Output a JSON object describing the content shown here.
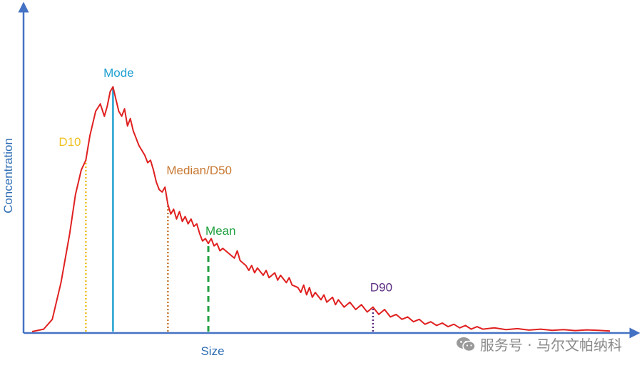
{
  "chart_data": {
    "type": "line",
    "title": "",
    "xlabel": "Size",
    "ylabel": "Concentration",
    "xlim": [
      0,
      100
    ],
    "ylim": [
      0,
      100
    ],
    "grid": false,
    "series": [
      {
        "color": "#e02020",
        "points": [
          [
            0,
            0
          ],
          [
            2,
            1
          ],
          [
            3.5,
            5
          ],
          [
            5,
            20
          ],
          [
            6.5,
            40
          ],
          [
            7.5,
            56
          ],
          [
            8.5,
            66
          ],
          [
            9.3,
            70
          ],
          [
            10,
            80
          ],
          [
            11,
            90
          ],
          [
            11.8,
            93
          ],
          [
            12.5,
            88
          ],
          [
            13,
            92
          ],
          [
            13.5,
            98
          ],
          [
            14,
            100
          ],
          [
            14.5,
            95
          ],
          [
            15,
            90
          ],
          [
            15.5,
            88
          ],
          [
            16,
            91
          ],
          [
            16.5,
            84
          ],
          [
            17,
            87
          ],
          [
            17.5,
            82
          ],
          [
            18,
            79
          ],
          [
            18.5,
            76
          ],
          [
            19,
            74
          ],
          [
            19.5,
            72
          ],
          [
            20,
            69
          ],
          [
            20.5,
            70
          ],
          [
            21,
            66
          ],
          [
            21.5,
            61
          ],
          [
            22,
            58
          ],
          [
            22.5,
            57
          ],
          [
            23,
            59
          ],
          [
            23.5,
            52
          ],
          [
            24,
            48
          ],
          [
            24.5,
            50
          ],
          [
            25,
            46
          ],
          [
            25.5,
            49
          ],
          [
            26,
            45
          ],
          [
            26.5,
            47
          ],
          [
            27,
            44
          ],
          [
            27.5,
            46
          ],
          [
            28,
            43
          ],
          [
            28.5,
            44
          ],
          [
            29,
            40
          ],
          [
            29.5,
            37
          ],
          [
            30,
            38
          ],
          [
            30.5,
            36
          ],
          [
            31,
            38
          ],
          [
            31.5,
            35
          ],
          [
            32,
            36
          ],
          [
            32.5,
            33
          ],
          [
            33,
            34
          ],
          [
            34,
            32
          ],
          [
            35,
            30
          ],
          [
            35.5,
            33
          ],
          [
            36,
            29
          ],
          [
            37,
            27
          ],
          [
            37.5,
            25
          ],
          [
            38,
            27
          ],
          [
            38.5,
            24
          ],
          [
            39,
            26
          ],
          [
            40,
            23
          ],
          [
            40.5,
            25
          ],
          [
            41,
            22
          ],
          [
            42,
            24
          ],
          [
            42.5,
            21
          ],
          [
            43,
            23
          ],
          [
            44,
            20
          ],
          [
            44.5,
            22
          ],
          [
            45,
            19
          ],
          [
            46,
            18
          ],
          [
            46.5,
            16
          ],
          [
            47,
            19
          ],
          [
            47.5,
            15
          ],
          [
            48,
            18
          ],
          [
            48.5,
            14
          ],
          [
            49,
            16
          ],
          [
            50,
            13
          ],
          [
            50.5,
            15
          ],
          [
            51,
            12
          ],
          [
            52,
            14
          ],
          [
            52.5,
            11
          ],
          [
            53,
            13
          ],
          [
            54,
            10
          ],
          [
            55,
            12
          ],
          [
            56,
            9
          ],
          [
            57,
            11
          ],
          [
            58,
            8
          ],
          [
            59,
            10
          ],
          [
            60,
            7
          ],
          [
            61,
            9
          ],
          [
            62,
            6
          ],
          [
            63,
            7
          ],
          [
            64,
            5
          ],
          [
            65,
            6
          ],
          [
            66,
            4
          ],
          [
            67,
            5
          ],
          [
            68,
            3
          ],
          [
            69,
            4
          ],
          [
            70,
            2.5
          ],
          [
            71,
            3.5
          ],
          [
            72,
            2
          ],
          [
            73,
            3
          ],
          [
            74,
            1.5
          ],
          [
            75,
            2.5
          ],
          [
            76,
            1
          ],
          [
            77,
            2
          ],
          [
            78,
            1
          ],
          [
            80,
            1.5
          ],
          [
            82,
            0.8
          ],
          [
            84,
            1.2
          ],
          [
            86,
            0.6
          ],
          [
            88,
            1
          ],
          [
            90,
            0.5
          ],
          [
            92,
            0.8
          ],
          [
            94,
            0.4
          ],
          [
            96,
            0.7
          ],
          [
            98,
            0.5
          ],
          [
            100,
            0.2
          ]
        ]
      }
    ],
    "markers": [
      {
        "label": "D10",
        "x": 9.3,
        "y": 70,
        "color": "#f0c020",
        "style": "dotted"
      },
      {
        "label": "Mode",
        "x": 14,
        "y": 100,
        "color": "#20a0d0",
        "style": "solid"
      },
      {
        "label": "Median/D50",
        "x": 23.5,
        "y": 52,
        "color": "#c87832",
        "style": "dotted"
      },
      {
        "label": "Mean",
        "x": 30.5,
        "y": 36,
        "color": "#20a040",
        "style": "dashed"
      },
      {
        "label": "D90",
        "x": 59,
        "y": 10,
        "color": "#5a2a80",
        "style": "dotted"
      }
    ]
  },
  "watermark": {
    "text": "服务号 · 马尔文帕纳科",
    "icon": "wechat-icon"
  }
}
